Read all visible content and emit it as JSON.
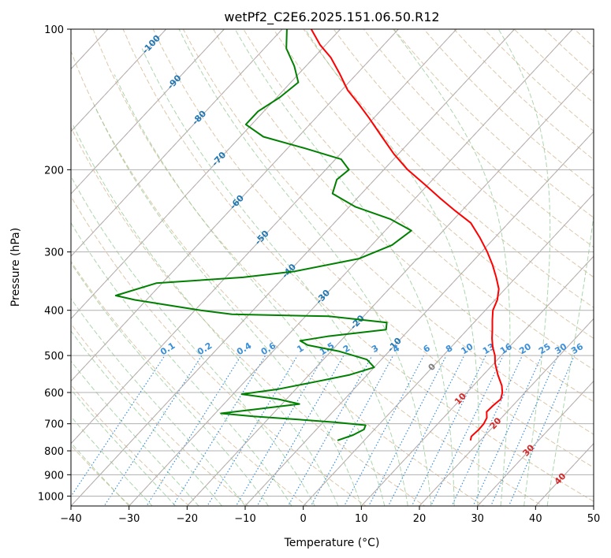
{
  "chart_data": {
    "type": "line",
    "title": "wetPf2_C2E6.2025.151.06.50.R12",
    "xlabel": "Temperature (°C)",
    "ylabel": "Pressure (hPa)",
    "xlim": [
      -40,
      50
    ],
    "ylim": [
      1050,
      100
    ],
    "yscale": "log",
    "skew": "skew-T",
    "grid": true,
    "x_ticks": [
      -40,
      -30,
      -20,
      -10,
      0,
      10,
      20,
      30,
      40,
      50
    ],
    "y_ticks": [
      100,
      200,
      300,
      400,
      500,
      600,
      700,
      800,
      900,
      1000
    ],
    "colors": {
      "temperature": "#ff0000",
      "dewpoint": "#008000",
      "dry_adiabat": "#d2b48c",
      "moist_adiabat": "#90c890",
      "mixing_ratio": "#3a8fd9",
      "isotherm": "#fa8c6e",
      "isotherm_label_blue": "#1f77b4",
      "isotherm_label_red": "#d62728",
      "grid": "#b0b0b0"
    },
    "isotherm_labels_blue": [
      "-100",
      "-90",
      "-80",
      "-70",
      "-60",
      "-50",
      "-40",
      "-30",
      "-20",
      "-10"
    ],
    "isotherm_labels_gray": [
      "0"
    ],
    "isotherm_labels_red": [
      "10",
      "20",
      "30",
      "40"
    ],
    "mixing_ratio_labels": [
      "0.1",
      "0.2",
      "0.4",
      "0.6",
      "1",
      "1.5",
      "2",
      "3",
      "4",
      "6",
      "8",
      "10",
      "13",
      "16",
      "20",
      "25",
      "30",
      "36"
    ],
    "series": [
      {
        "id": "temperature",
        "points": [
          [
            760,
            18.3
          ],
          [
            745,
            17.8
          ],
          [
            720,
            18.0
          ],
          [
            700,
            17.9
          ],
          [
            680,
            17.5
          ],
          [
            660,
            16.5
          ],
          [
            640,
            16.6
          ],
          [
            620,
            16.9
          ],
          [
            600,
            16.1
          ],
          [
            580,
            14.9
          ],
          [
            550,
            12.5
          ],
          [
            520,
            10.2
          ],
          [
            500,
            8.9
          ],
          [
            480,
            7.2
          ],
          [
            460,
            5.7
          ],
          [
            440,
            4.3
          ],
          [
            420,
            2.8
          ],
          [
            400,
            1.3
          ],
          [
            380,
            0.4
          ],
          [
            360,
            -1.1
          ],
          [
            340,
            -3.4
          ],
          [
            320,
            -6.0
          ],
          [
            300,
            -9.0
          ],
          [
            280,
            -12.5
          ],
          [
            260,
            -16.5
          ],
          [
            245,
            -21.1
          ],
          [
            230,
            -25.8
          ],
          [
            215,
            -30.6
          ],
          [
            200,
            -35.9
          ],
          [
            185,
            -40.8
          ],
          [
            170,
            -45.6
          ],
          [
            155,
            -50.8
          ],
          [
            145,
            -54.7
          ],
          [
            135,
            -59.0
          ],
          [
            125,
            -62.8
          ],
          [
            115,
            -67.1
          ],
          [
            108,
            -71.0
          ],
          [
            100,
            -75.0
          ]
        ]
      },
      {
        "id": "dewpoint",
        "points": [
          [
            760,
            -4.6
          ],
          [
            740,
            -2.8
          ],
          [
            720,
            -1.8
          ],
          [
            705,
            -2.2
          ],
          [
            695,
            -8.0
          ],
          [
            685,
            -15.0
          ],
          [
            675,
            -23.0
          ],
          [
            665,
            -29.0
          ],
          [
            650,
            -23.0
          ],
          [
            635,
            -17.0
          ],
          [
            620,
            -21.5
          ],
          [
            605,
            -28.5
          ],
          [
            590,
            -23.0
          ],
          [
            570,
            -18.0
          ],
          [
            550,
            -13.0
          ],
          [
            530,
            -10.0
          ],
          [
            510,
            -12.5
          ],
          [
            490,
            -18.5
          ],
          [
            475,
            -25.0
          ],
          [
            465,
            -27.0
          ],
          [
            455,
            -23.0
          ],
          [
            440,
            -14.0
          ],
          [
            425,
            -15.0
          ],
          [
            412,
            -26.0
          ],
          [
            408,
            -43.0
          ],
          [
            400,
            -49.0
          ],
          [
            380,
            -62.0
          ],
          [
            372,
            -66.0
          ],
          [
            350,
            -61.0
          ],
          [
            340,
            -47.0
          ],
          [
            330,
            -39.0
          ],
          [
            310,
            -30.0
          ],
          [
            290,
            -26.5
          ],
          [
            270,
            -25.5
          ],
          [
            255,
            -31.0
          ],
          [
            240,
            -39.0
          ],
          [
            225,
            -45.0
          ],
          [
            210,
            -46.5
          ],
          [
            200,
            -46.0
          ],
          [
            190,
            -49.0
          ],
          [
            180,
            -57.0
          ],
          [
            170,
            -66.0
          ],
          [
            160,
            -71.0
          ],
          [
            150,
            -71.0
          ],
          [
            140,
            -69.5
          ],
          [
            130,
            -68.7
          ],
          [
            120,
            -72.0
          ],
          [
            110,
            -76.2
          ],
          [
            100,
            -79.2
          ]
        ]
      }
    ]
  }
}
